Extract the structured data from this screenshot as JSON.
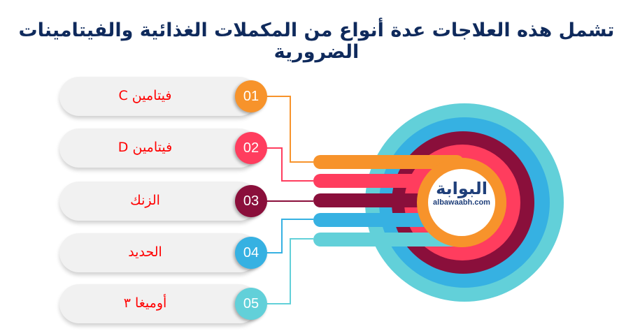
{
  "title": {
    "line1": "تشمل هذه العلاجات عدة أنواع من المكملات الغذائية والفيتامينات",
    "line2": "الضرورية"
  },
  "items": [
    {
      "number": "01",
      "label": "فيتامين C",
      "color": "#f7932b"
    },
    {
      "number": "02",
      "label": "فيتامين D",
      "color": "#ff3d5e"
    },
    {
      "number": "03",
      "label": "الزنك",
      "color": "#8a0f3b"
    },
    {
      "number": "04",
      "label": "الحديد",
      "color": "#36b1e2"
    },
    {
      "number": "05",
      "label": "أوميغا ٣",
      "color": "#62d0d9"
    }
  ],
  "logo": {
    "arabic": "البوابة",
    "latin": "albawaabh.com"
  }
}
